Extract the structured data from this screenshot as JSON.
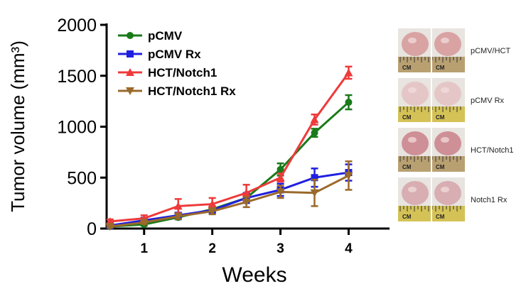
{
  "chart_data": {
    "type": "line",
    "ylabel": "Tumor volume (mm³)",
    "xlabel": "Weeks",
    "x": [
      0.5,
      1.0,
      1.5,
      2.0,
      2.5,
      3.0,
      3.5,
      4.0,
      4.5
    ],
    "xticks": [
      1,
      2,
      3,
      4
    ],
    "xlim": [
      0.45,
      4.6
    ],
    "ylim": [
      0,
      2000
    ],
    "yticks": [
      0,
      500,
      1000,
      1500,
      2000
    ],
    "legend_position": "top-left",
    "series": [
      {
        "name": "pCMV",
        "color": "#1a7a1a",
        "marker": "circle",
        "values": [
          20,
          40,
          110,
          190,
          300,
          580,
          940,
          1240,
          null
        ],
        "errors": [
          10,
          12,
          20,
          30,
          40,
          60,
          40,
          70,
          null
        ]
      },
      {
        "name": "pCMV Rx",
        "color": "#1f1fe0",
        "marker": "square",
        "values": [
          30,
          80,
          130,
          180,
          300,
          380,
          500,
          550,
          null
        ],
        "errors": [
          12,
          20,
          25,
          30,
          50,
          60,
          90,
          80,
          null
        ]
      },
      {
        "name": "HCT/Notch1",
        "color": "#ee3a3a",
        "marker": "triangle",
        "values": [
          70,
          100,
          220,
          240,
          350,
          500,
          1070,
          1530,
          null
        ],
        "errors": [
          20,
          30,
          70,
          60,
          80,
          40,
          50,
          60,
          null
        ]
      },
      {
        "name": "HCT/Notch1 Rx",
        "color": "#9a6a2a",
        "marker": "triangle-down",
        "values": [
          20,
          60,
          120,
          170,
          260,
          360,
          350,
          520,
          null
        ],
        "errors": [
          10,
          15,
          25,
          30,
          50,
          60,
          130,
          140,
          null
        ]
      }
    ]
  },
  "photos": [
    {
      "label": "pCMV/HCT",
      "ruler_text": "CM",
      "bg": "#b9a071",
      "tissue": "#d9a3a3"
    },
    {
      "label": "pCMV Rx",
      "ruler_text": "CM",
      "bg": "#d4c256",
      "tissue": "#e5c6c6"
    },
    {
      "label": "HCT/Notch1",
      "ruler_text": "CM",
      "bg": "#b9a071",
      "tissue": "#cf8f96"
    },
    {
      "label": "Notch1 Rx",
      "ruler_text": "CM",
      "bg": "#d4c256",
      "tissue": "#d8aeb2"
    }
  ]
}
